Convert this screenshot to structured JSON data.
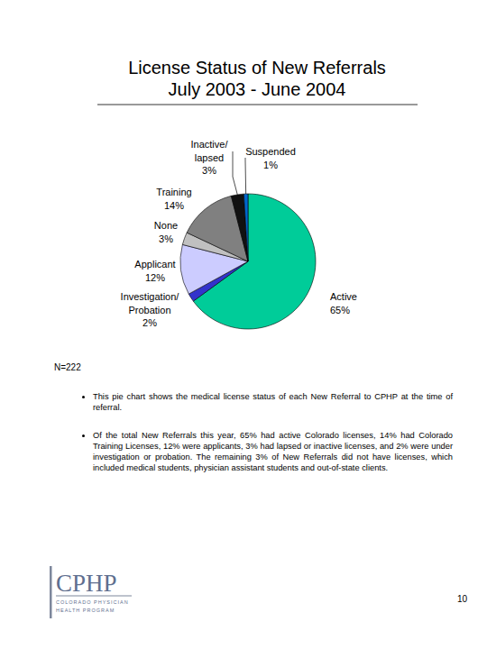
{
  "chart_data": {
    "type": "pie",
    "title": "License Status of New Referrals",
    "subtitle": "July 2003 - June 2004",
    "categories": [
      "Active",
      "Investigation/Probation",
      "Applicant",
      "None",
      "Training",
      "Inactive/lapsed",
      "Suspended"
    ],
    "values": [
      65,
      2,
      12,
      3,
      14,
      3,
      1
    ],
    "value_labels": [
      "65%",
      "2%",
      "12%",
      "3%",
      "14%",
      "3%",
      "1%"
    ],
    "colors": [
      "#00cc99",
      "#3333cc",
      "#ccccff",
      "#c0c0c0",
      "#808080",
      "#111111",
      "#0066cc"
    ],
    "data_labels": true
  },
  "note": "N=222",
  "bullets": [
    "This pie chart shows the medical license status of each New Referral to CPHP at the time of referral.",
    "Of the total New Referrals this year, 65% had active Colorado licenses, 14% had Colorado Training Licenses, 12% were applicants, 3% had lapsed or inactive licenses, and 2% were under investigation or probation. The remaining 3% of New Referrals did not have licenses, which included medical students, physician assistant students and out-of-state clients."
  ],
  "logo": {
    "name": "CPHP",
    "tagline": [
      "COLORADO PHYSICIAN",
      "HEALTH PROGRAM"
    ]
  },
  "page_number": 10
}
